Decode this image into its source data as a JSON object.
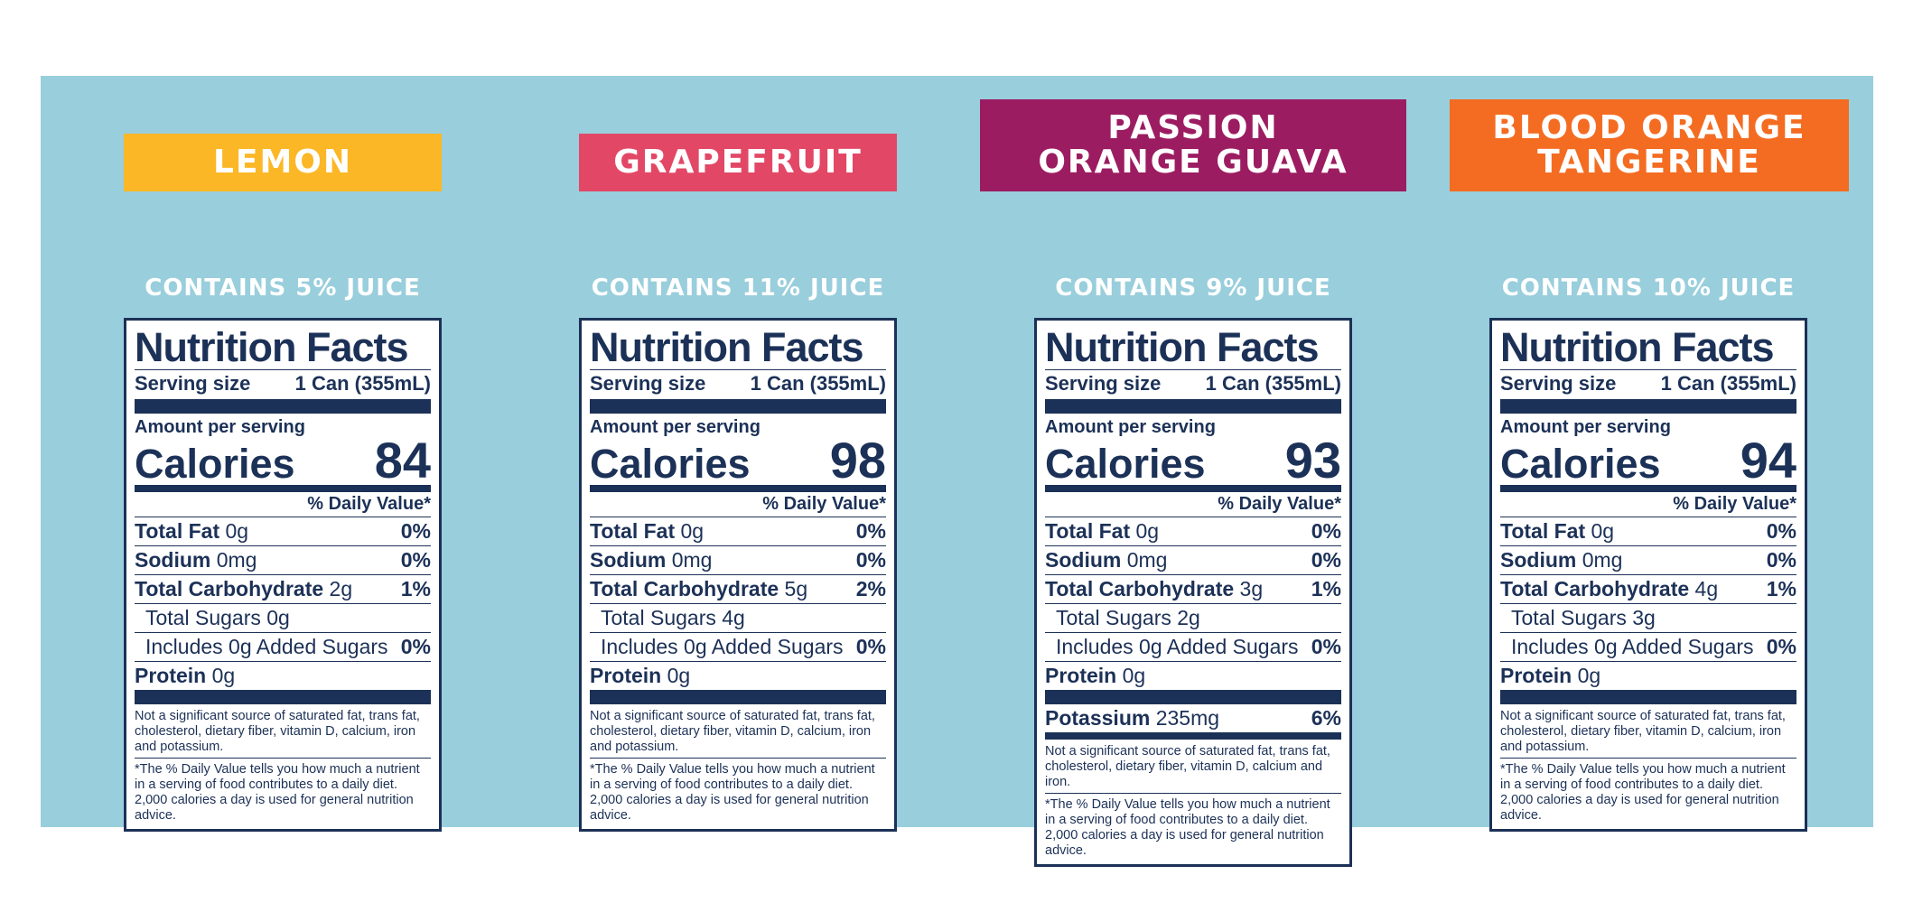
{
  "colors": {
    "background_panel": "#99cedc",
    "label_ink": "#1c3157"
  },
  "labels": [
    {
      "flavor": "LEMON",
      "flavor_color": "#fbb725",
      "juice": "CONTAINS 5% JUICE",
      "title": "Nutrition Facts",
      "serving_label": "Serving size",
      "serving_value": "1 Can (355mL)",
      "amount_label": "Amount per serving",
      "calories_label": "Calories",
      "calories": "84",
      "dv_header": "% Daily Value*",
      "total_fat": "Total Fat",
      "total_fat_amt": "0g",
      "total_fat_dv": "0%",
      "sodium": "Sodium",
      "sodium_amt": "0mg",
      "sodium_dv": "0%",
      "carb": "Total Carbohydrate",
      "carb_amt": "2g",
      "carb_dv": "1%",
      "sugars": "Total Sugars 0g",
      "added_sugars": "Includes 0g Added Sugars",
      "added_sugars_dv": "0%",
      "protein": "Protein",
      "protein_amt": "0g",
      "footnote_1": "Not a significant source of saturated fat, trans fat, cholesterol, dietary fiber, vitamin D, calcium, iron and potassium.",
      "footnote_2": "*The % Daily Value tells you how much a nutrient in a serving of food contributes to a daily diet. 2,000 calories a day is used for general nutrition advice."
    },
    {
      "flavor": "GRAPEFRUIT",
      "flavor_color": "#e24866",
      "juice": "CONTAINS 11% JUICE",
      "title": "Nutrition Facts",
      "serving_label": "Serving size",
      "serving_value": "1 Can (355mL)",
      "amount_label": "Amount per serving",
      "calories_label": "Calories",
      "calories": "98",
      "dv_header": "% Daily Value*",
      "total_fat": "Total Fat",
      "total_fat_amt": "0g",
      "total_fat_dv": "0%",
      "sodium": "Sodium",
      "sodium_amt": "0mg",
      "sodium_dv": "0%",
      "carb": "Total Carbohydrate",
      "carb_amt": "5g",
      "carb_dv": "2%",
      "sugars": "Total Sugars 4g",
      "added_sugars": "Includes 0g Added Sugars",
      "added_sugars_dv": "0%",
      "protein": "Protein",
      "protein_amt": "0g",
      "footnote_1": "Not a significant source of saturated fat, trans fat, cholesterol, dietary fiber, vitamin D, calcium, iron and potassium.",
      "footnote_2": "*The % Daily Value tells you how much a nutrient in a serving of food contributes to a daily diet. 2,000 calories a day is used for general nutrition advice."
    },
    {
      "flavor": "PASSION\nORANGE GUAVA",
      "flavor_color": "#9c1c61",
      "juice": "CONTAINS 9% JUICE",
      "title": "Nutrition Facts",
      "serving_label": "Serving size",
      "serving_value": "1 Can (355mL)",
      "amount_label": "Amount per serving",
      "calories_label": "Calories",
      "calories": "93",
      "dv_header": "% Daily Value*",
      "total_fat": "Total Fat",
      "total_fat_amt": "0g",
      "total_fat_dv": "0%",
      "sodium": "Sodium",
      "sodium_amt": "0mg",
      "sodium_dv": "0%",
      "carb": "Total Carbohydrate",
      "carb_amt": "3g",
      "carb_dv": "1%",
      "sugars": "Total Sugars 2g",
      "added_sugars": "Includes 0g Added Sugars",
      "added_sugars_dv": "0%",
      "protein": "Protein",
      "protein_amt": "0g",
      "potassium": "Potassium",
      "potassium_amt": "235mg",
      "potassium_dv": "6%",
      "footnote_1": "Not a significant source of saturated fat, trans fat, cholesterol, dietary fiber, vitamin D, calcium and iron.",
      "footnote_2": "*The % Daily Value tells you how much a nutrient in a serving of food contributes to a daily diet. 2,000 calories a day is used for general nutrition advice."
    },
    {
      "flavor": "BLOOD ORANGE\nTANGERINE",
      "flavor_color": "#f46c21",
      "juice": "CONTAINS 10% JUICE",
      "title": "Nutrition Facts",
      "serving_label": "Serving size",
      "serving_value": "1 Can (355mL)",
      "amount_label": "Amount per serving",
      "calories_label": "Calories",
      "calories": "94",
      "dv_header": "% Daily Value*",
      "total_fat": "Total Fat",
      "total_fat_amt": "0g",
      "total_fat_dv": "0%",
      "sodium": "Sodium",
      "sodium_amt": "0mg",
      "sodium_dv": "0%",
      "carb": "Total Carbohydrate",
      "carb_amt": "4g",
      "carb_dv": "1%",
      "sugars": "Total Sugars 3g",
      "added_sugars": "Includes 0g Added Sugars",
      "added_sugars_dv": "0%",
      "protein": "Protein",
      "protein_amt": "0g",
      "footnote_1": "Not a significant source of saturated fat, trans fat, cholesterol, dietary fiber, vitamin D, calcium, iron and potassium.",
      "footnote_2": "*The % Daily Value tells you how much a nutrient in a serving of food contributes to a daily diet. 2,000 calories a day is used for general nutrition advice."
    }
  ]
}
